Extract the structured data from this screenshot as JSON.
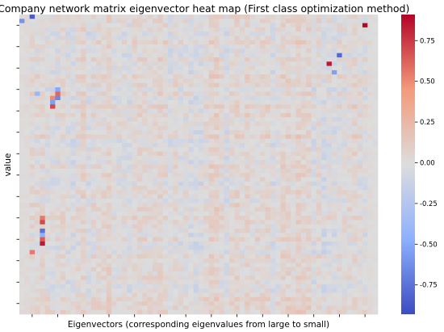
{
  "chart_data": {
    "type": "heatmap",
    "title": "X Company network matrix eigenvector heat map (First class optimization method)",
    "xlabel": "Eigenvectors (corresponding eigenvalues from large to small)",
    "ylabel": "value",
    "colormap": "coolwarm",
    "colorbar": {
      "ticks": [
        0.75,
        0.5,
        0.25,
        0.0,
        -0.25,
        -0.5,
        -0.75
      ],
      "tick_labels": [
        "0.75",
        "0.50",
        "0.25",
        "0.00",
        "-0.25",
        "-0.50",
        "-0.75"
      ],
      "vmin": -0.93,
      "vmax": 0.91
    },
    "rows": 70,
    "cols": 70,
    "x_tick_count": 14,
    "y_tick_count": 14,
    "tick_labels_shown": false,
    "notable_cells": [
      {
        "row": 0,
        "col": 2,
        "value": -0.85
      },
      {
        "row": 1,
        "col": 0,
        "value": -0.6
      },
      {
        "row": 2,
        "col": 67,
        "value": 0.9
      },
      {
        "row": 9,
        "col": 62,
        "value": -0.8
      },
      {
        "row": 11,
        "col": 60,
        "value": 0.85
      },
      {
        "row": 13,
        "col": 61,
        "value": -0.55
      },
      {
        "row": 17,
        "col": 7,
        "value": -0.5
      },
      {
        "row": 18,
        "col": 7,
        "value": 0.6
      },
      {
        "row": 18,
        "col": 3,
        "value": -0.4
      },
      {
        "row": 19,
        "col": 7,
        "value": -0.65
      },
      {
        "row": 19,
        "col": 6,
        "value": 0.5
      },
      {
        "row": 20,
        "col": 6,
        "value": -0.55
      },
      {
        "row": 21,
        "col": 6,
        "value": 0.7
      },
      {
        "row": 47,
        "col": 4,
        "value": 0.55
      },
      {
        "row": 48,
        "col": 4,
        "value": 0.7
      },
      {
        "row": 52,
        "col": 4,
        "value": 0.65
      },
      {
        "row": 53,
        "col": 4,
        "value": 0.85
      },
      {
        "row": 50,
        "col": 4,
        "value": -0.75
      },
      {
        "row": 51,
        "col": 4,
        "value": -0.45
      },
      {
        "row": 55,
        "col": 2,
        "value": 0.55
      }
    ]
  }
}
